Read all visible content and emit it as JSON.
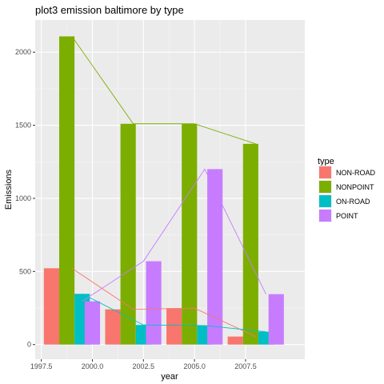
{
  "chart_data": {
    "type": "bar",
    "title": "plot3 emission baltimore by type",
    "xlabel": "year",
    "ylabel": "Emissions",
    "x_ticks": [
      "1997.5",
      "2000.0",
      "2002.5",
      "2005.0",
      "2007.5"
    ],
    "x_tick_values": [
      1997.5,
      2000.0,
      2002.5,
      2005.0,
      2007.5
    ],
    "y_ticks": [
      "0",
      "500",
      "1000",
      "1500",
      "2000"
    ],
    "y_tick_values": [
      0,
      500,
      1000,
      1500,
      2000
    ],
    "xlim": [
      1997.2,
      2010.4
    ],
    "ylim": [
      -100,
      2220
    ],
    "grid": true,
    "legend_placement": "right",
    "legend_title": "type",
    "series": [
      {
        "name": "NON-ROAD",
        "color": "#f8766d",
        "bar_x": [
          1998.0,
          2001.0,
          2004.0,
          2007.0
        ],
        "bar_values": [
          522,
          241,
          249,
          55
        ],
        "line_x": [
          1999,
          2002,
          2005,
          2008
        ],
        "line_values": [
          522,
          241,
          249,
          55
        ]
      },
      {
        "name": "NONPOINT",
        "color": "#7cae00",
        "bar_x": [
          1998.75,
          2001.75,
          2004.75,
          2007.75
        ],
        "bar_values": [
          2108,
          1510,
          1510,
          1373
        ],
        "line_x": [
          1999,
          2002,
          2005,
          2008
        ],
        "line_values": [
          2108,
          1510,
          1510,
          1373
        ]
      },
      {
        "name": "ON-ROAD",
        "color": "#00bfc4",
        "bar_x": [
          1999.5,
          2002.5,
          2005.5,
          2008.5
        ],
        "bar_values": [
          347,
          134,
          130,
          88
        ],
        "line_x": [
          1999.5,
          2002.5,
          2005.5,
          2008.5
        ],
        "line_values": [
          347,
          134,
          130,
          88
        ]
      },
      {
        "name": "POINT",
        "color": "#c77cff",
        "bar_x": [
          2000.0,
          2003.0,
          2006.0,
          2009.0
        ],
        "bar_values": [
          296,
          570,
          1200,
          345
        ],
        "line_x": [
          1999.5,
          2002.5,
          2005.5,
          2008.5
        ],
        "line_values": [
          296,
          570,
          1200,
          345
        ]
      }
    ]
  }
}
